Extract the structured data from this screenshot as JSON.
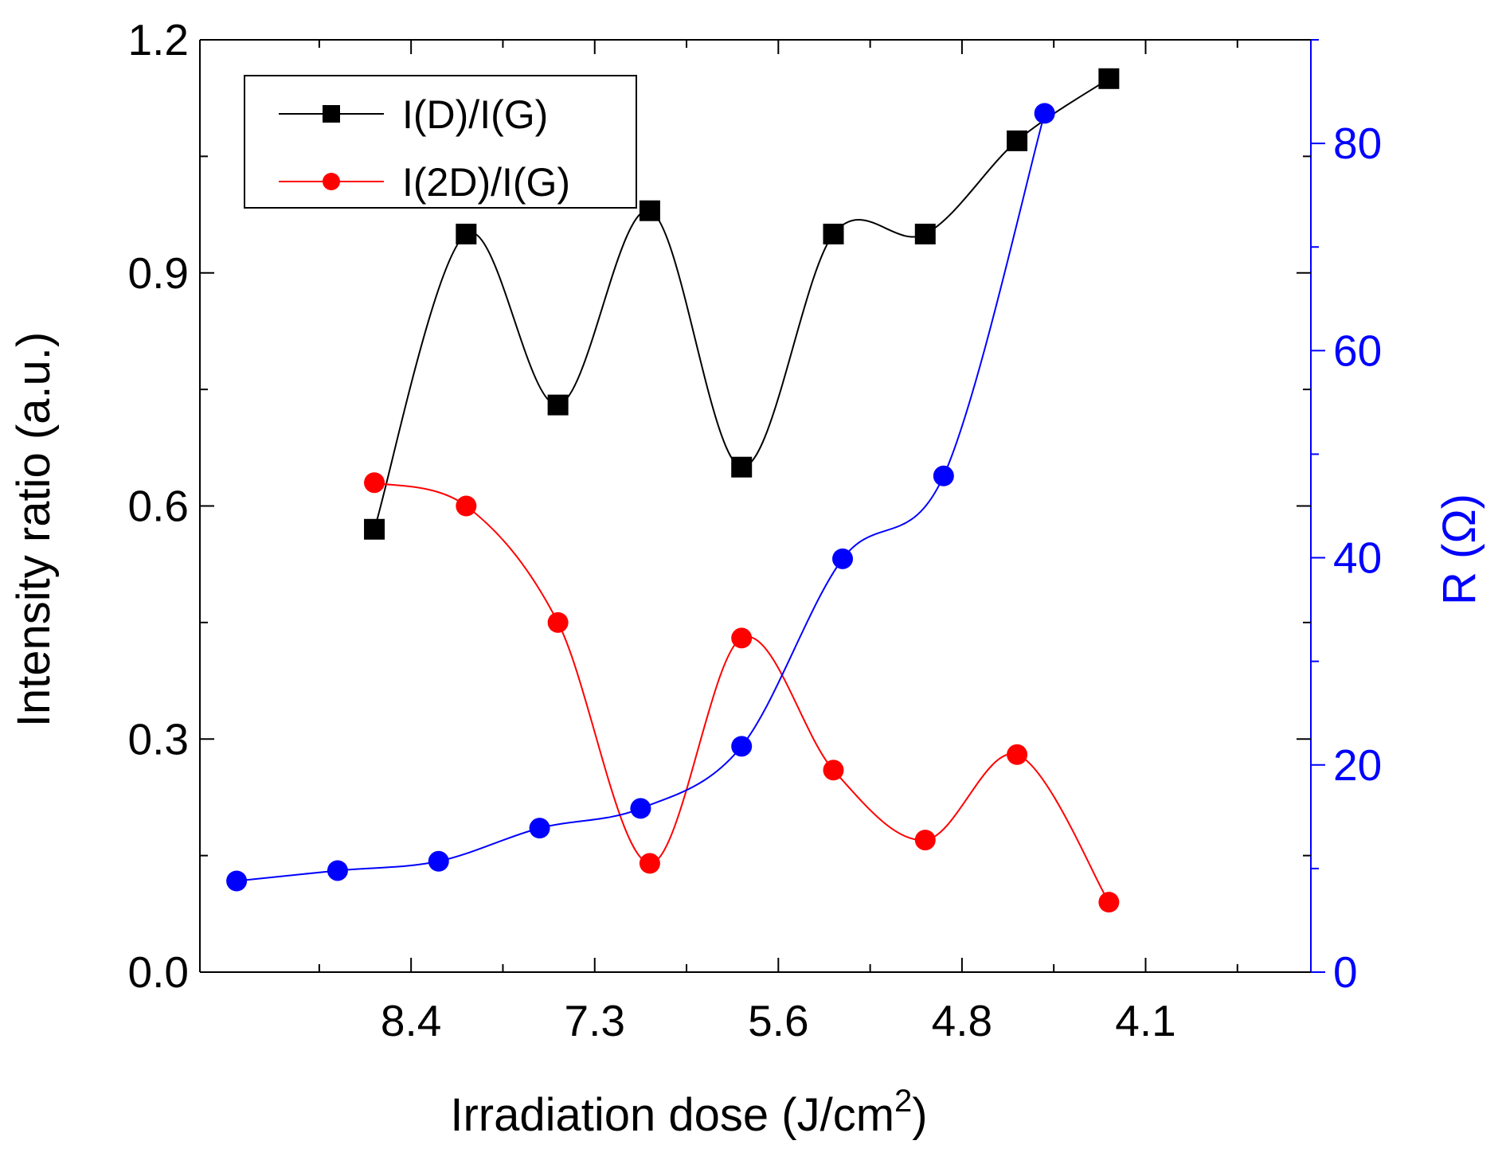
{
  "chart_data": {
    "type": "line",
    "xlabel": "Irradiation dose (J/cm",
    "xlabel_sup": "2",
    "xlabel_end": ")",
    "x_ticks": [
      {
        "pos": 2,
        "label": "8.4"
      },
      {
        "pos": 4,
        "label": "7.3"
      },
      {
        "pos": 6,
        "label": "5.6"
      },
      {
        "pos": 8,
        "label": "4.8"
      },
      {
        "pos": 10,
        "label": "4.1"
      }
    ],
    "x_range": [
      -0.3,
      11.8
    ],
    "left_axis": {
      "label": "Intensity ratio (a.u.)",
      "ylim": [
        0,
        1.2
      ],
      "ticks": [
        "0.0",
        "0.3",
        "0.6",
        "0.9",
        "1.2"
      ],
      "tick_values": [
        0,
        0.3,
        0.6,
        0.9,
        1.2
      ],
      "color": "#000000"
    },
    "right_axis": {
      "label": "R (Ω)",
      "ylim": [
        0,
        90
      ],
      "ticks": [
        "0",
        "20",
        "40",
        "60",
        "80"
      ],
      "tick_values": [
        0,
        20,
        40,
        60,
        80
      ],
      "color": "#0000ff"
    },
    "series": [
      {
        "name": "I(D)/I(G)",
        "axis": "left",
        "marker": "square",
        "color": "#000000",
        "x": [
          1.6,
          2.6,
          3.6,
          4.6,
          5.6,
          6.6,
          7.6,
          8.6,
          9.6
        ],
        "y": [
          0.57,
          0.95,
          0.73,
          0.98,
          0.65,
          0.95,
          0.95,
          1.07,
          1.15
        ]
      },
      {
        "name": "I(2D)/I(G)",
        "axis": "left",
        "marker": "circle",
        "color": "#ff0000",
        "x": [
          1.6,
          2.6,
          3.6,
          4.6,
          5.6,
          6.6,
          7.6,
          8.6,
          9.6
        ],
        "y": [
          0.63,
          0.6,
          0.45,
          0.14,
          0.43,
          0.26,
          0.17,
          0.28,
          0.09
        ]
      },
      {
        "name": "R",
        "axis": "right",
        "marker": "circle",
        "color": "#0000ff",
        "x": [
          0.1,
          1.2,
          2.3,
          3.4,
          4.5,
          5.6,
          6.7,
          7.8,
          8.9,
          9.5
        ],
        "y": [
          8.8,
          9.8,
          10.7,
          13.9,
          15.8,
          21.8,
          39.9,
          47.9,
          82.9,
          null
        ]
      }
    ],
    "legend": [
      "I(D)/I(G)",
      "I(2D)/I(G)"
    ],
    "legend_position": "top-left"
  }
}
